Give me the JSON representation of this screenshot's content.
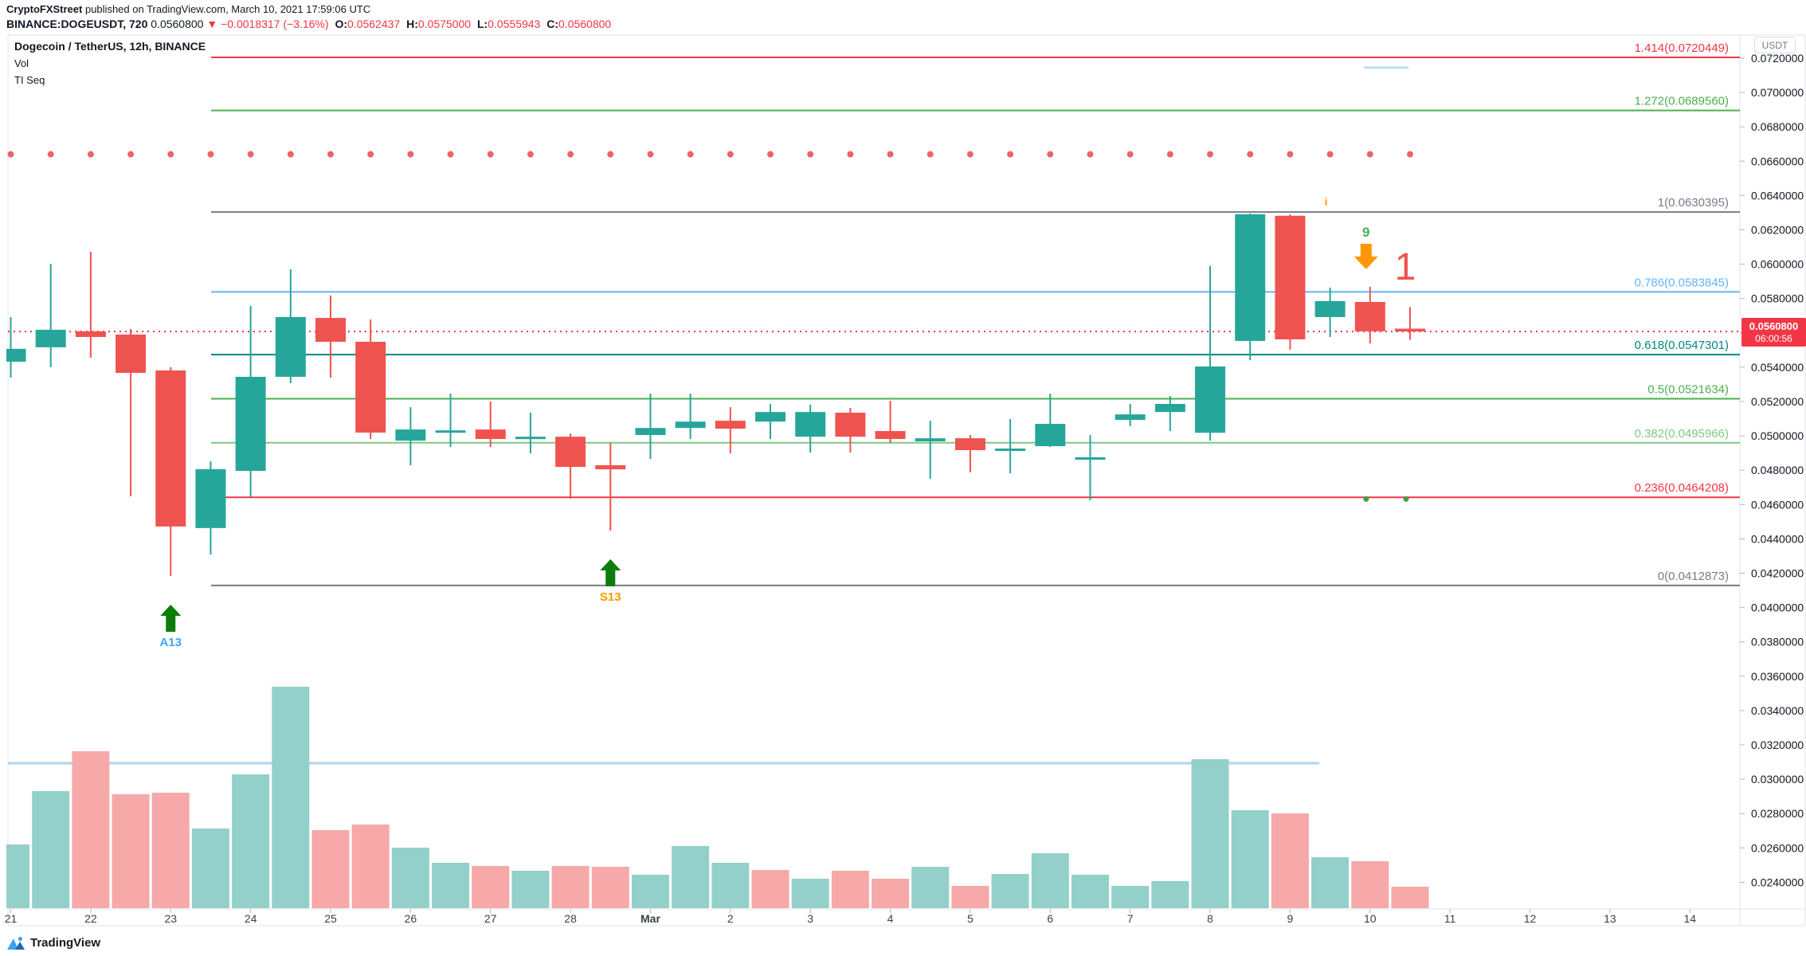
{
  "header": {
    "line1_brand": "CryptoFXStreet",
    "line1_rest": " published on TradingView.com, March 10, 2021 17:59:06 UTC",
    "line2": {
      "symbol": "BINANCE:DOGEUSDT, 720",
      "last": "0.0560800",
      "down_arrow": "▼",
      "change": "−0.0018317 (−3.16%)",
      "o_label": "O:",
      "o": "0.0562437",
      "h_label": "H:",
      "h": "0.0575000",
      "l_label": "L:",
      "l": "0.0555943",
      "c_label": "C:",
      "c": "0.0560800"
    }
  },
  "legend": {
    "title": "Dogecoin / TetherUS, 12h, BINANCE",
    "indicator1": "Vol",
    "indicator2": "TI Seq"
  },
  "price_axis": {
    "unit_badge": "USDT",
    "labels": [
      "0.0720000",
      "0.0700000",
      "0.0680000",
      "0.0660000",
      "0.0640000",
      "0.0620000",
      "0.0600000",
      "0.0580000",
      "0.0560000",
      "0.0540000",
      "0.0520000",
      "0.0500000",
      "0.0480000",
      "0.0460000",
      "0.0440000",
      "0.0420000",
      "0.0400000",
      "0.0380000",
      "0.0360000",
      "0.0340000",
      "0.0320000",
      "0.0300000",
      "0.0280000",
      "0.0260000",
      "0.0240000"
    ],
    "price_label": {
      "price": "0.0560800",
      "countdown": "06:00:56"
    }
  },
  "time_axis": {
    "labels": [
      "21",
      "22",
      "23",
      "24",
      "25",
      "26",
      "27",
      "28",
      "Mar",
      "2",
      "3",
      "4",
      "5",
      "6",
      "7",
      "8",
      "9",
      "10",
      "11",
      "12",
      "13",
      "14"
    ]
  },
  "footer": {
    "logo_text": "TradingView"
  },
  "colors": {
    "candle_up": "#26a69a",
    "candle_down": "#ef5350",
    "volume_up": "#93d0ca",
    "volume_down": "#f6a9a8",
    "volume_ma": "#a9cdf0",
    "current_price_line": "#f23645",
    "dots_row": "#f56062",
    "frame": "#e0e3eb",
    "axis_text": "#131722",
    "marker_green_arrow": "#0a7d0a",
    "marker_orange": "#ff9800",
    "marker_big_one": "#ef5350",
    "blue_segment": "#bbdefb",
    "green_dot": "#43a047"
  },
  "chart_data": {
    "type": "candlestick",
    "title": "Dogecoin / TetherUS, 12h, BINANCE",
    "interval": "12h",
    "y_axis": {
      "top": 0.072,
      "bottom": 0.024,
      "step": 0.002,
      "unit": "USDT"
    },
    "current_price": 0.05608,
    "candles_ohlc_order": "o,h,l,c",
    "candles": [
      [
        0.05432,
        0.05692,
        0.05339,
        0.05507
      ],
      [
        0.05516,
        0.06003,
        0.054,
        0.05618
      ],
      [
        0.05609,
        0.06073,
        0.05456,
        0.05576
      ],
      [
        0.0559,
        0.05623,
        0.04648,
        0.05367
      ],
      [
        0.05381,
        0.054,
        0.04184,
        0.04472
      ],
      [
        0.04463,
        0.04852,
        0.04309,
        0.04806
      ],
      [
        0.04796,
        0.05757,
        0.04643,
        0.05344
      ],
      [
        0.05344,
        0.0597,
        0.05307,
        0.05692
      ],
      [
        0.05687,
        0.05817,
        0.05339,
        0.05548
      ],
      [
        0.05548,
        0.05678,
        0.04982,
        0.05019
      ],
      [
        0.04972,
        0.05167,
        0.04829,
        0.05037
      ],
      [
        0.05023,
        0.05246,
        0.04935,
        0.05032
      ],
      [
        0.05037,
        0.052,
        0.04935,
        0.04982
      ],
      [
        0.04986,
        0.05135,
        0.04898,
        0.04995
      ],
      [
        0.04995,
        0.05014,
        0.04634,
        0.04819
      ],
      [
        0.04829,
        0.04959,
        0.04448,
        0.04805
      ],
      [
        0.05005,
        0.05246,
        0.04866,
        0.05046
      ],
      [
        0.05046,
        0.05246,
        0.04982,
        0.05083
      ],
      [
        0.05088,
        0.05167,
        0.04898,
        0.05042
      ],
      [
        0.05083,
        0.05186,
        0.04982,
        0.05139
      ],
      [
        0.04995,
        0.05181,
        0.04903,
        0.05139
      ],
      [
        0.05135,
        0.05163,
        0.04903,
        0.04995
      ],
      [
        0.05028,
        0.05204,
        0.04959,
        0.04982
      ],
      [
        0.04968,
        0.05088,
        0.0475,
        0.04986
      ],
      [
        0.04986,
        0.05005,
        0.04787,
        0.04917
      ],
      [
        0.04917,
        0.05098,
        0.04782,
        0.04926
      ],
      [
        0.0494,
        0.05246,
        0.04935,
        0.0507
      ],
      [
        0.04861,
        0.05005,
        0.04625,
        0.04875
      ],
      [
        0.05093,
        0.05186,
        0.05056,
        0.05125
      ],
      [
        0.05139,
        0.05232,
        0.05028,
        0.05186
      ],
      [
        0.05018,
        0.0599,
        0.04972,
        0.05404
      ],
      [
        0.05553,
        0.06295,
        0.05441,
        0.06291
      ],
      [
        0.06282,
        0.0629,
        0.05502,
        0.05562
      ],
      [
        0.05692,
        0.05864,
        0.05576,
        0.05785
      ],
      [
        0.0578,
        0.05869,
        0.05539,
        0.05609
      ],
      [
        0.0562437,
        0.0575,
        0.0555943,
        0.05608
      ]
    ],
    "volume": {
      "note": "relative heights, no numeric scale shown",
      "rel_heights": [
        80,
        147,
        197,
        143,
        145,
        100,
        168,
        278,
        98,
        105,
        76,
        57,
        53,
        47,
        53,
        52,
        42,
        78,
        57,
        48,
        37,
        47,
        37,
        52,
        28,
        43,
        69,
        42,
        28,
        34,
        187,
        123,
        119,
        64,
        59,
        27
      ],
      "up_flags": [
        1,
        1,
        0,
        0,
        0,
        1,
        1,
        1,
        0,
        0,
        1,
        1,
        0,
        1,
        0,
        0,
        1,
        1,
        1,
        0,
        1,
        0,
        0,
        1,
        0,
        1,
        1,
        1,
        1,
        1,
        1,
        1,
        0,
        1,
        0,
        0
      ],
      "ma_level_rel": 182
    },
    "fib_levels": [
      {
        "label": "1.414(0.0720449)",
        "value": 0.0720449,
        "color": "#f23645"
      },
      {
        "label": "1.272(0.0689560)",
        "value": 0.068956,
        "color": "#4caf50"
      },
      {
        "label": "1(0.0630395)",
        "value": 0.0630395,
        "color": "#787b86"
      },
      {
        "label": "0.786(0.0583845)",
        "value": 0.0583845,
        "color": "#64b5f6"
      },
      {
        "label": "0.618(0.0547301)",
        "value": 0.0547301,
        "color": "#00897b"
      },
      {
        "label": "0.5(0.0521634)",
        "value": 0.0521634,
        "color": "#4caf50"
      },
      {
        "label": "0.382(0.0495966)",
        "value": 0.0495966,
        "color": "#81c784"
      },
      {
        "label": "0.236(0.0464208)",
        "value": 0.0464208,
        "color": "#f23645"
      },
      {
        "label": "0(0.0412873)",
        "value": 0.0412873,
        "color": "#787b86"
      }
    ],
    "dots_row": {
      "price": 0.0664,
      "per_candle": true
    },
    "markers": [
      {
        "type": "up-arrow",
        "candle_index": 4,
        "label": "A13",
        "label_color": "#42a5f5"
      },
      {
        "type": "up-arrow",
        "candle_index": 15,
        "label": "S13",
        "label_color": "#ff9800"
      },
      {
        "type": "text",
        "text": "i",
        "candle_index": 33,
        "color": "#ff9800",
        "size": 14
      },
      {
        "type": "text",
        "text": "9",
        "candle_index": 34,
        "color": "#4caf50",
        "size": 17
      },
      {
        "type": "down-arrow",
        "candle_index": 34,
        "color": "#ff9800"
      },
      {
        "type": "big-text",
        "text": "1",
        "candle_index": 35,
        "color": "#ef5350",
        "size": 48
      },
      {
        "type": "blue-segment",
        "price": 0.07145
      },
      {
        "type": "green-dot",
        "candle_index": 34,
        "price": 0.04632
      },
      {
        "type": "green-dot",
        "candle_index": 35,
        "price": 0.04632
      }
    ]
  }
}
